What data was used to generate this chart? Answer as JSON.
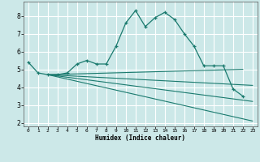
{
  "xlabel": "Humidex (Indice chaleur)",
  "background_color": "#cce8e8",
  "grid_color": "#ffffff",
  "line_color": "#1a7a6e",
  "xlim": [
    -0.5,
    23.5
  ],
  "ylim": [
    1.8,
    8.8
  ],
  "xticks": [
    0,
    1,
    2,
    3,
    4,
    5,
    6,
    7,
    8,
    9,
    10,
    11,
    12,
    13,
    14,
    15,
    16,
    17,
    18,
    19,
    20,
    21,
    22,
    23
  ],
  "yticks": [
    2,
    3,
    4,
    5,
    6,
    7,
    8
  ],
  "series": [
    {
      "x": [
        0,
        1,
        2,
        3,
        4,
        5,
        6,
        7,
        8,
        9,
        10,
        11,
        12,
        13,
        14,
        15,
        16,
        17,
        18,
        19,
        20,
        21,
        22
      ],
      "y": [
        5.4,
        4.8,
        4.7,
        4.7,
        4.8,
        5.3,
        5.5,
        5.3,
        5.3,
        6.3,
        7.6,
        8.3,
        7.4,
        7.9,
        8.2,
        7.8,
        7.0,
        6.3,
        5.2,
        5.2,
        5.2,
        3.9,
        3.5
      ]
    },
    {
      "x": [
        2,
        23
      ],
      "y": [
        4.7,
        2.1
      ]
    },
    {
      "x": [
        2,
        23
      ],
      "y": [
        4.7,
        3.2
      ]
    },
    {
      "x": [
        2,
        23
      ],
      "y": [
        4.7,
        4.1
      ]
    },
    {
      "x": [
        2,
        22
      ],
      "y": [
        4.7,
        5.0
      ]
    }
  ]
}
